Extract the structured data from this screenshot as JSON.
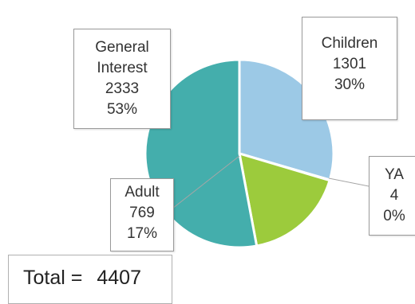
{
  "chart_data": {
    "type": "pie",
    "categories": [
      "Children",
      "YA",
      "Adult",
      "General Interest"
    ],
    "values": [
      1301,
      4,
      769,
      2333
    ],
    "percent_labels": [
      "30%",
      "0%",
      "17%",
      "53%"
    ],
    "value_labels": [
      "1301",
      "4",
      "769",
      "2333"
    ],
    "colors": [
      "#9cc9e6",
      "#d6dce4",
      "#9ccb3c",
      "#3aa8ad",
      "#44aeac"
    ],
    "start_angle_deg": 0,
    "direction": "clockwise",
    "labels": {
      "general": {
        "name_line1": "General",
        "name_line2": "Interest",
        "value": "2333",
        "percent": "53%"
      },
      "children": {
        "name": "Children",
        "value": "1301",
        "percent": "30%"
      },
      "ya": {
        "name": "YA",
        "value": "4",
        "percent": "0%"
      },
      "adult": {
        "name": "Adult",
        "value": "769",
        "percent": "17%"
      }
    },
    "total": {
      "label": "Total =",
      "value": "4407"
    }
  }
}
